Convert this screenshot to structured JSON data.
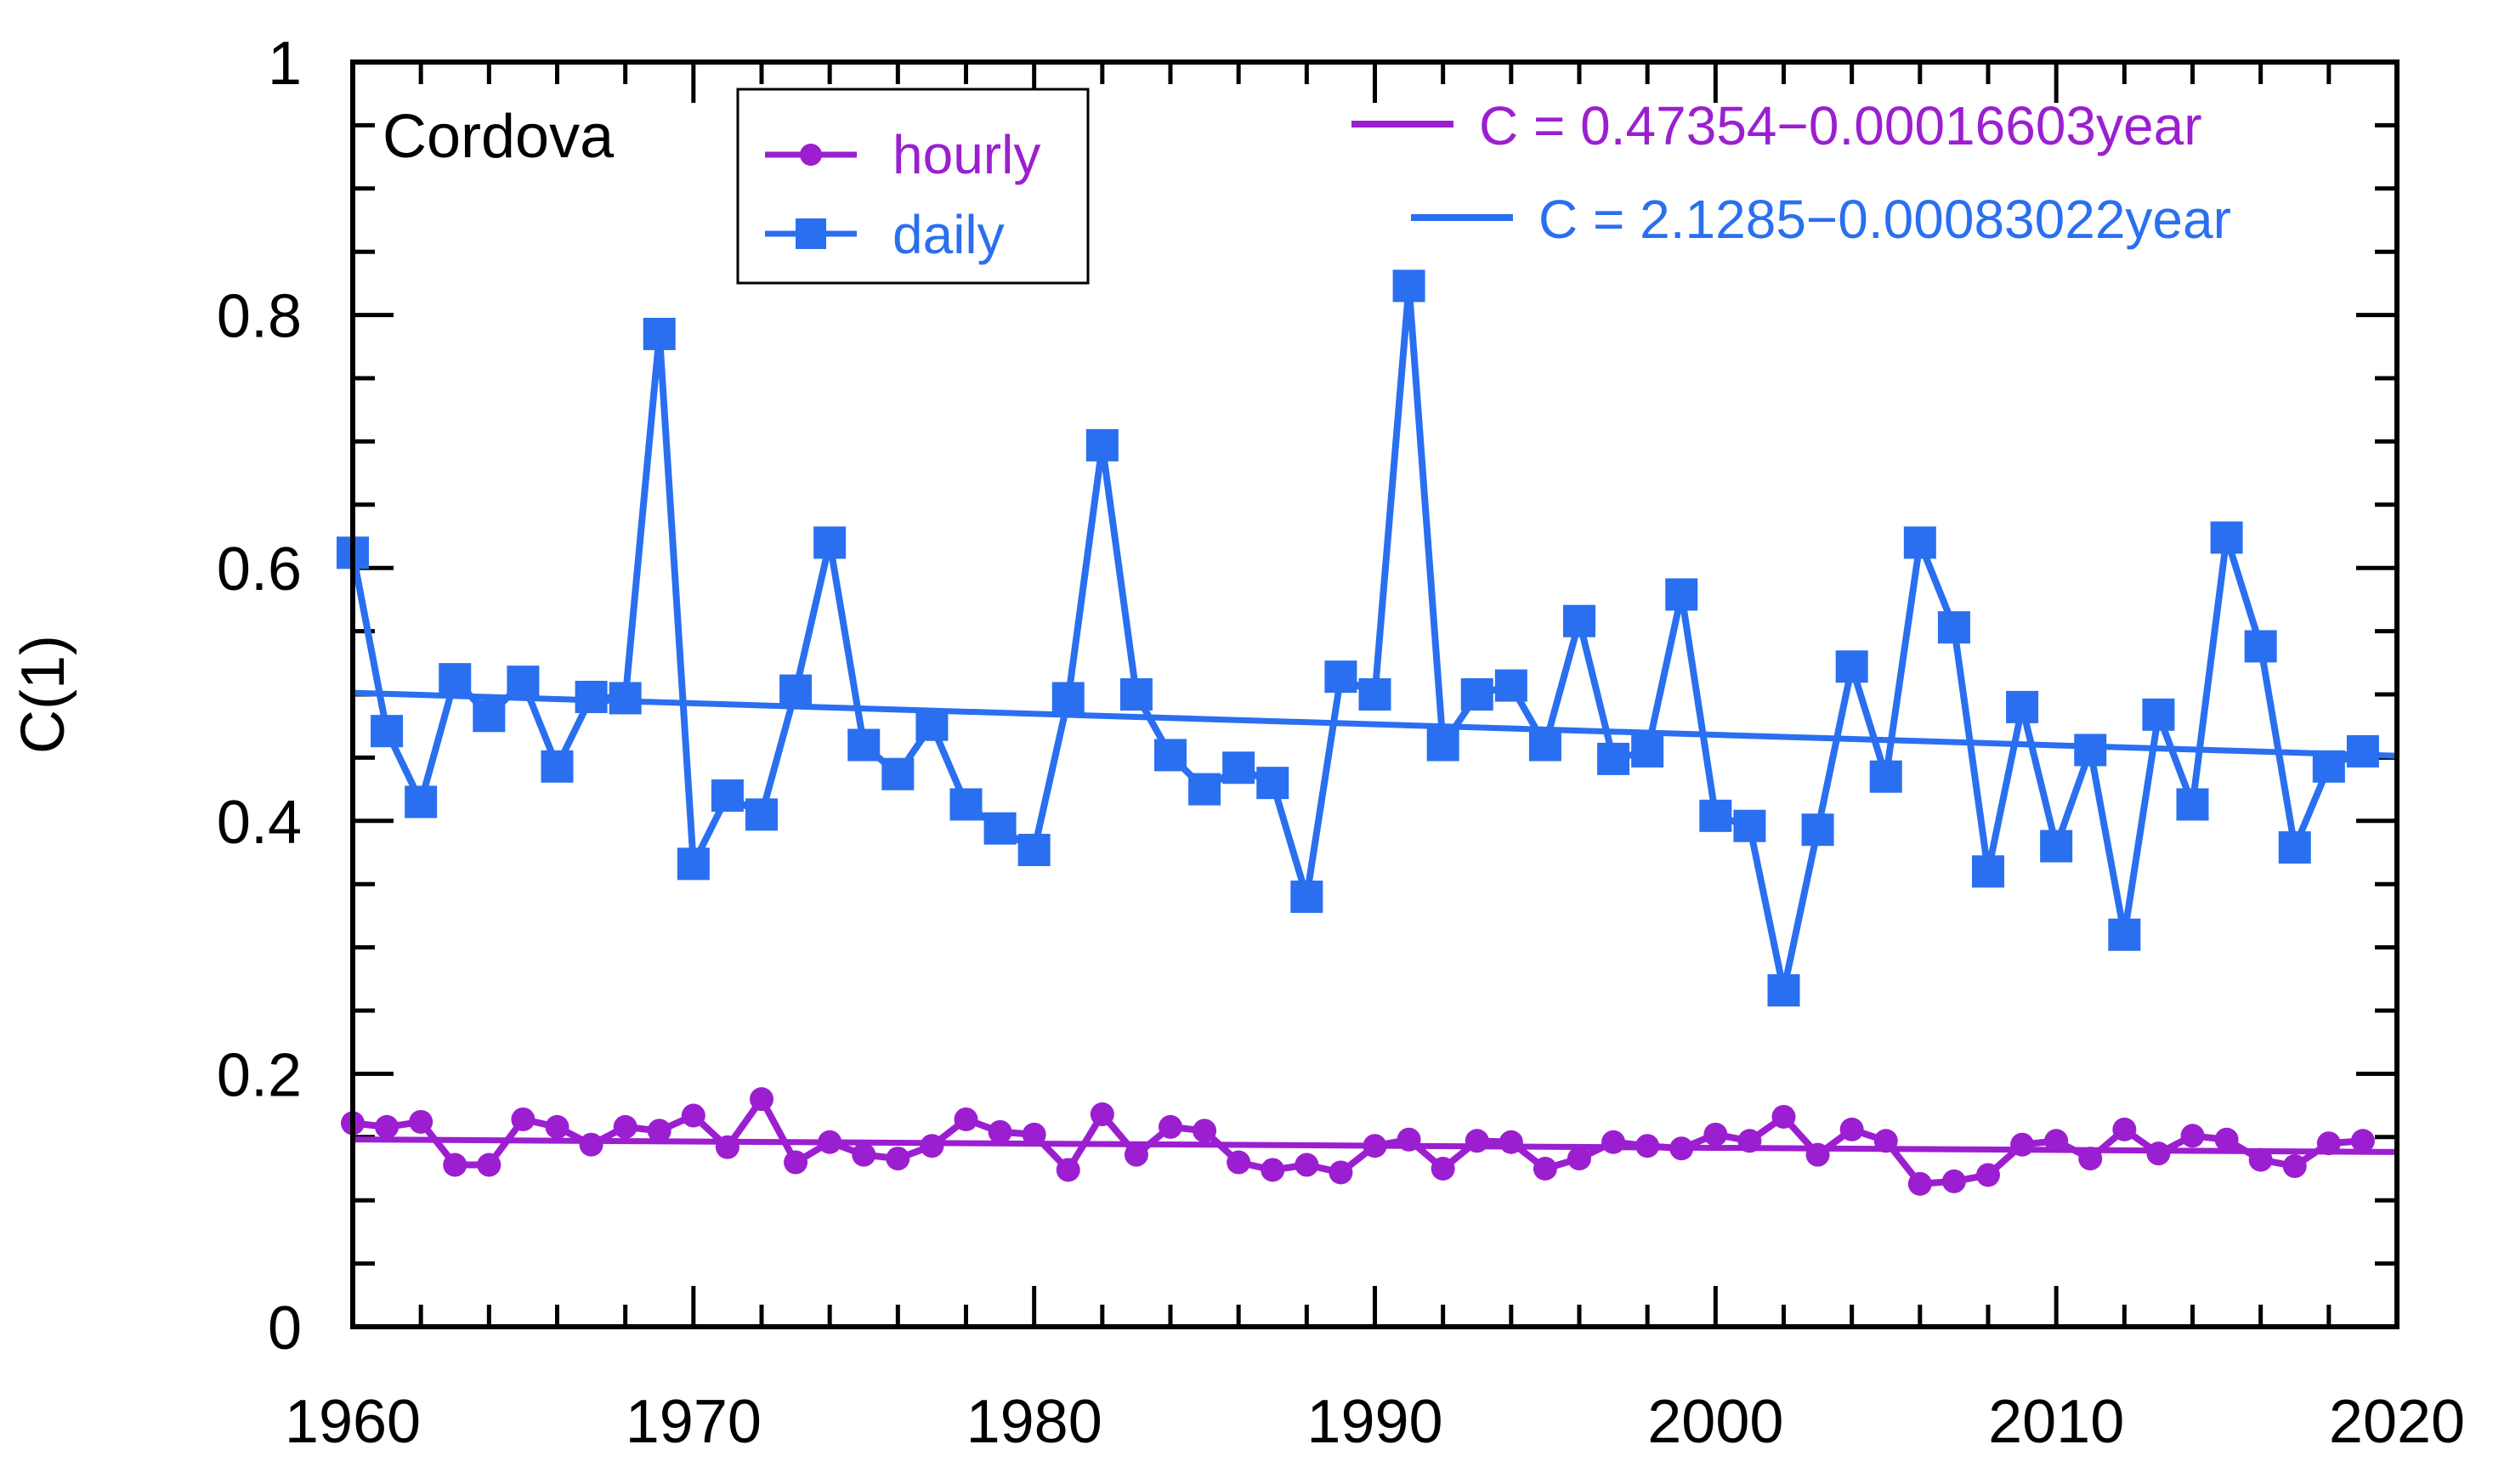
{
  "chart_data": {
    "type": "line",
    "title": "",
    "station": "Cordova",
    "xlabel": "",
    "ylabel": "C(1)",
    "xlim": [
      1960,
      2020
    ],
    "ylim": [
      0,
      1
    ],
    "xticks": [
      1960,
      1970,
      1980,
      1990,
      2000,
      2010,
      2020
    ],
    "xtick_labels": [
      "1960",
      "1970",
      "1980",
      "1990",
      "2000",
      "2010",
      "2020"
    ],
    "yticks": [
      0,
      0.2,
      0.4,
      0.6,
      0.8,
      1
    ],
    "ytick_labels": [
      "0",
      "0.2",
      "0.4",
      "0.6",
      "0.8",
      "1"
    ],
    "grid": false,
    "legend_position": "top-left",
    "series": [
      {
        "name": "hourly",
        "color": "#9b1fd0",
        "marker": "circle",
        "x": [
          1960,
          1961,
          1962,
          1963,
          1964,
          1965,
          1966,
          1967,
          1968,
          1969,
          1970,
          1971,
          1972,
          1973,
          1974,
          1975,
          1976,
          1977,
          1978,
          1979,
          1980,
          1981,
          1982,
          1983,
          1984,
          1985,
          1986,
          1987,
          1988,
          1989,
          1990,
          1991,
          1992,
          1993,
          1994,
          1995,
          1996,
          1997,
          1998,
          1999,
          2000,
          2001,
          2002,
          2003,
          2004,
          2005,
          2006,
          2007,
          2008,
          2009,
          2010,
          2011,
          2012,
          2013,
          2014,
          2015,
          2016,
          2017,
          2018,
          2019
        ],
        "values": [
          0.161,
          0.158,
          0.162,
          0.128,
          0.128,
          0.164,
          0.158,
          0.144,
          0.158,
          0.155,
          0.167,
          0.142,
          0.18,
          0.13,
          0.146,
          0.136,
          0.133,
          0.143,
          0.164,
          0.154,
          0.152,
          0.124,
          0.168,
          0.136,
          0.158,
          0.155,
          0.13,
          0.124,
          0.128,
          0.122,
          0.143,
          0.148,
          0.125,
          0.147,
          0.146,
          0.125,
          0.133,
          0.146,
          0.143,
          0.141,
          0.152,
          0.147,
          0.166,
          0.136,
          0.156,
          0.147,
          0.113,
          0.115,
          0.12,
          0.144,
          0.147,
          0.133,
          0.156,
          0.137,
          0.151,
          0.148,
          0.132,
          0.127,
          0.145,
          0.147
        ]
      },
      {
        "name": "daily",
        "color": "#2a6ff0",
        "marker": "square",
        "x": [
          1960,
          1961,
          1962,
          1963,
          1964,
          1965,
          1966,
          1967,
          1968,
          1969,
          1970,
          1971,
          1972,
          1973,
          1974,
          1975,
          1976,
          1977,
          1978,
          1979,
          1980,
          1981,
          1982,
          1983,
          1984,
          1985,
          1986,
          1987,
          1988,
          1989,
          1990,
          1991,
          1992,
          1993,
          1994,
          1995,
          1996,
          1997,
          1998,
          1999,
          2000,
          2001,
          2002,
          2003,
          2004,
          2005,
          2006,
          2007,
          2008,
          2009,
          2010,
          2011,
          2012,
          2013,
          2014,
          2015,
          2016,
          2017,
          2018,
          2019
        ],
        "values": [
          0.612,
          0.471,
          0.415,
          0.512,
          0.483,
          0.51,
          0.443,
          0.498,
          0.497,
          0.785,
          0.366,
          0.42,
          0.405,
          0.503,
          0.62,
          0.46,
          0.437,
          0.476,
          0.413,
          0.394,
          0.377,
          0.497,
          0.697,
          0.5,
          0.452,
          0.425,
          0.442,
          0.43,
          0.34,
          0.514,
          0.5,
          0.823,
          0.46,
          0.5,
          0.507,
          0.46,
          0.558,
          0.449,
          0.455,
          0.579,
          0.404,
          0.396,
          0.266,
          0.393,
          0.522,
          0.435,
          0.62,
          0.553,
          0.36,
          0.49,
          0.38,
          0.456,
          0.31,
          0.484,
          0.413,
          0.624,
          0.538,
          0.379,
          0.443,
          0.455
        ]
      }
    ],
    "fits": [
      {
        "name": "hourly-fit",
        "label": "C = 0.47354−0.00016603year",
        "color": "#9b1fd0",
        "intercept": 0.47354,
        "slope": -0.00016603
      },
      {
        "name": "daily-fit",
        "label": "C = 2.1285−0.00083022year",
        "color": "#2a6ff0",
        "intercept": 2.1285,
        "slope": -0.00083022
      }
    ]
  }
}
